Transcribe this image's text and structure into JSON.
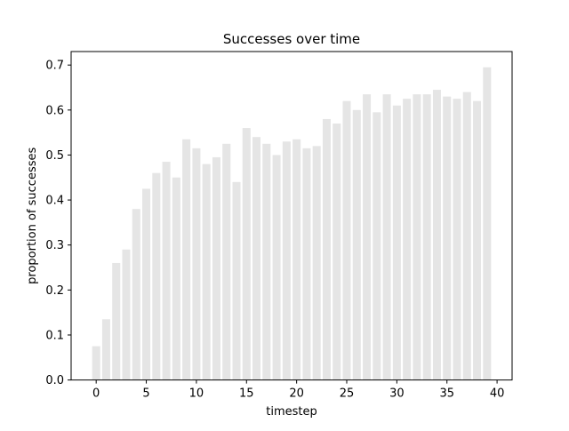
{
  "chart_data": {
    "type": "bar",
    "title": "Successes over time",
    "xlabel": "timestep",
    "ylabel": "proportion of successes",
    "x": [
      0,
      1,
      2,
      3,
      4,
      5,
      6,
      7,
      8,
      9,
      10,
      11,
      12,
      13,
      14,
      15,
      16,
      17,
      18,
      19,
      20,
      21,
      22,
      23,
      24,
      25,
      26,
      27,
      28,
      29,
      30,
      31,
      32,
      33,
      34,
      35,
      36,
      37,
      38,
      39
    ],
    "values": [
      0.075,
      0.135,
      0.26,
      0.29,
      0.38,
      0.425,
      0.46,
      0.485,
      0.45,
      0.535,
      0.515,
      0.48,
      0.495,
      0.525,
      0.44,
      0.56,
      0.54,
      0.525,
      0.5,
      0.53,
      0.535,
      0.515,
      0.52,
      0.58,
      0.57,
      0.62,
      0.6,
      0.635,
      0.595,
      0.635,
      0.61,
      0.625,
      0.635,
      0.635,
      0.645,
      0.63,
      0.625,
      0.64,
      0.62,
      0.695
    ],
    "xlim": [
      -2.5,
      41.5
    ],
    "ylim": [
      0,
      0.73
    ],
    "xticks": [
      0,
      5,
      10,
      15,
      20,
      25,
      30,
      35,
      40
    ],
    "yticks": [
      0.0,
      0.1,
      0.2,
      0.3,
      0.4,
      0.5,
      0.6,
      0.7
    ],
    "ytick_labels": [
      "0.0",
      "0.1",
      "0.2",
      "0.3",
      "0.4",
      "0.5",
      "0.6",
      "0.7"
    ],
    "bar_color": "#e5e5e5",
    "grid": false,
    "legend": false
  }
}
